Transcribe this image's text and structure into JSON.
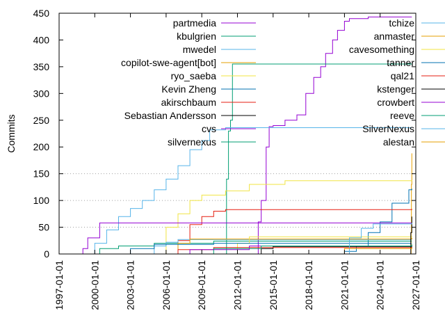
{
  "chart_data": {
    "type": "line",
    "title": "",
    "xlabel": "",
    "ylabel": "Commits",
    "x_range": [
      "1997-01-01",
      "2027-01-01"
    ],
    "ylim": [
      0,
      450
    ],
    "y_ticks": [
      0,
      50,
      100,
      150,
      200,
      250,
      300,
      350,
      400,
      450
    ],
    "x_ticks": [
      "1997-01-01",
      "2000-01-01",
      "2003-01-01",
      "2006-01-01",
      "2009-01-01",
      "2012-01-01",
      "2015-01-01",
      "2018-01-01",
      "2021-01-01",
      "2024-01-01",
      "2027-01-01"
    ],
    "grid": "horizontal dotted at 50, 100, 150",
    "legend_placement": "top, two columns",
    "series": [
      {
        "name": "partmedia",
        "color": "#9400d3",
        "points": [
          [
            "2013-09-01",
            0
          ],
          [
            "2013-10-01",
            60
          ],
          [
            "2014-01-01",
            100
          ],
          [
            "2014-06-01",
            200
          ],
          [
            "2014-09-01",
            238
          ],
          [
            "2015-01-01",
            240
          ],
          [
            "2016-01-01",
            250
          ],
          [
            "2017-01-01",
            260
          ],
          [
            "2017-10-01",
            300
          ],
          [
            "2018-06-01",
            330
          ],
          [
            "2019-01-01",
            350
          ],
          [
            "2019-06-01",
            375
          ],
          [
            "2020-01-01",
            400
          ],
          [
            "2020-06-01",
            418
          ],
          [
            "2021-01-01",
            435
          ],
          [
            "2021-06-01",
            440
          ],
          [
            "2023-01-01",
            443
          ],
          [
            "2026-09-01",
            443
          ]
        ]
      },
      {
        "name": "kbulgrien",
        "color": "#009e73",
        "points": [
          [
            "2011-01-01",
            0
          ],
          [
            "2011-02-01",
            140
          ],
          [
            "2011-04-01",
            230
          ],
          [
            "2011-06-01",
            250
          ],
          [
            "2011-08-01",
            355
          ],
          [
            "2026-09-01",
            355
          ]
        ]
      },
      {
        "name": "mwedel",
        "color": "#56b4e9",
        "points": [
          [
            "1999-06-01",
            0
          ],
          [
            "2000-01-01",
            20
          ],
          [
            "2001-01-01",
            45
          ],
          [
            "2002-01-01",
            70
          ],
          [
            "2003-01-01",
            85
          ],
          [
            "2004-01-01",
            100
          ],
          [
            "2005-01-01",
            120
          ],
          [
            "2006-01-01",
            140
          ],
          [
            "2007-01-01",
            165
          ],
          [
            "2008-01-01",
            195
          ],
          [
            "2009-01-01",
            212
          ],
          [
            "2009-09-01",
            232
          ],
          [
            "2011-01-01",
            236
          ],
          [
            "2026-09-01",
            236
          ]
        ]
      },
      {
        "name": "copilot-swe-agent[bot]",
        "color": "#e69f00",
        "points": [
          [
            "2026-08-01",
            0
          ],
          [
            "2026-08-10",
            40
          ],
          [
            "2026-08-20",
            130
          ],
          [
            "2026-09-01",
            188
          ]
        ]
      },
      {
        "name": "ryo_saeba",
        "color": "#f0e442",
        "points": [
          [
            "2005-06-01",
            0
          ],
          [
            "2006-01-01",
            50
          ],
          [
            "2007-01-01",
            75
          ],
          [
            "2008-01-01",
            100
          ],
          [
            "2009-01-01",
            110
          ],
          [
            "2011-01-01",
            118
          ],
          [
            "2013-01-01",
            130
          ],
          [
            "2016-01-01",
            137
          ],
          [
            "2026-09-01",
            138
          ]
        ]
      },
      {
        "name": "Kevin Zheng",
        "color": "#0072b2",
        "points": [
          [
            "2020-06-01",
            0
          ],
          [
            "2021-01-01",
            5
          ],
          [
            "2022-01-01",
            15
          ],
          [
            "2023-01-01",
            40
          ],
          [
            "2024-01-01",
            60
          ],
          [
            "2025-01-01",
            95
          ],
          [
            "2026-06-01",
            120
          ],
          [
            "2026-09-01",
            122
          ]
        ]
      },
      {
        "name": "akirschbaum",
        "color": "#e51e10",
        "points": [
          [
            "2006-06-01",
            0
          ],
          [
            "2007-01-01",
            25
          ],
          [
            "2008-01-01",
            55
          ],
          [
            "2009-01-01",
            70
          ],
          [
            "2010-01-01",
            80
          ],
          [
            "2011-01-01",
            83
          ],
          [
            "2026-09-01",
            84
          ]
        ]
      },
      {
        "name": "Sebastian Andersson",
        "color": "#000000",
        "points": [
          [
            "2013-06-01",
            0
          ],
          [
            "2014-01-01",
            10
          ],
          [
            "2015-01-01",
            14
          ],
          [
            "2026-09-01",
            15
          ]
        ]
      },
      {
        "name": "cvs",
        "color": "#9400d3",
        "points": [
          [
            "1998-06-01",
            0
          ],
          [
            "1999-01-01",
            10
          ],
          [
            "1999-06-01",
            30
          ],
          [
            "2000-06-01",
            58
          ],
          [
            "2026-09-01",
            58
          ]
        ]
      },
      {
        "name": "silvernexus",
        "color": "#009e73",
        "points": [
          [
            "1999-06-01",
            0
          ],
          [
            "2000-06-01",
            10
          ],
          [
            "2002-01-01",
            15
          ],
          [
            "2005-01-01",
            20
          ],
          [
            "2010-01-01",
            24
          ],
          [
            "2026-09-01",
            24
          ]
        ]
      },
      {
        "name": "tchize",
        "color": "#56b4e9",
        "points": [
          [
            "2004-06-01",
            0
          ],
          [
            "2005-01-01",
            15
          ],
          [
            "2006-01-01",
            22
          ],
          [
            "2007-01-01",
            27
          ],
          [
            "2026-09-01",
            27
          ]
        ]
      },
      {
        "name": "anmaster",
        "color": "#e69f00",
        "points": [
          [
            "2006-06-01",
            0
          ],
          [
            "2007-01-01",
            20
          ],
          [
            "2008-01-01",
            28
          ],
          [
            "2026-09-01",
            30
          ]
        ]
      },
      {
        "name": "cavesomething",
        "color": "#f0e442",
        "points": [
          [
            "2011-01-01",
            0
          ],
          [
            "2012-01-01",
            20
          ],
          [
            "2013-01-01",
            32
          ],
          [
            "2026-09-01",
            33
          ]
        ]
      },
      {
        "name": "tanner",
        "color": "#0072b2",
        "points": [
          [
            "2002-06-01",
            0
          ],
          [
            "2003-01-01",
            10
          ],
          [
            "2005-01-01",
            18
          ],
          [
            "2010-01-01",
            20
          ],
          [
            "2026-09-01",
            20
          ]
        ]
      },
      {
        "name": "qal21",
        "color": "#e51e10",
        "points": [
          [
            "2006-01-01",
            0
          ],
          [
            "2007-01-01",
            8
          ],
          [
            "2010-01-01",
            12
          ],
          [
            "2026-09-01",
            13
          ]
        ]
      },
      {
        "name": "kstenger",
        "color": "#000000",
        "points": [
          [
            "2026-07-01",
            0
          ],
          [
            "2026-08-01",
            40
          ],
          [
            "2026-09-01",
            70
          ]
        ]
      },
      {
        "name": "crowbert",
        "color": "#9400d3",
        "points": [
          [
            "2007-01-01",
            0
          ],
          [
            "2008-01-01",
            8
          ],
          [
            "2013-01-01",
            15
          ],
          [
            "2026-09-01",
            16
          ]
        ]
      },
      {
        "name": "reeve",
        "color": "#009e73",
        "points": [
          [
            "2009-01-01",
            0
          ],
          [
            "2010-01-01",
            10
          ],
          [
            "2014-01-01",
            15
          ],
          [
            "2026-09-01",
            18
          ]
        ]
      },
      {
        "name": "SilverNexus",
        "color": "#56b4e9",
        "points": [
          [
            "2020-06-01",
            0
          ],
          [
            "2021-06-01",
            30
          ],
          [
            "2022-06-01",
            48
          ],
          [
            "2023-06-01",
            56
          ],
          [
            "2026-09-01",
            58
          ]
        ]
      },
      {
        "name": "alestan",
        "color": "#e69f00",
        "points": [
          [
            "2020-06-01",
            0
          ],
          [
            "2021-01-01",
            10
          ],
          [
            "2026-09-01",
            12
          ]
        ]
      }
    ]
  }
}
